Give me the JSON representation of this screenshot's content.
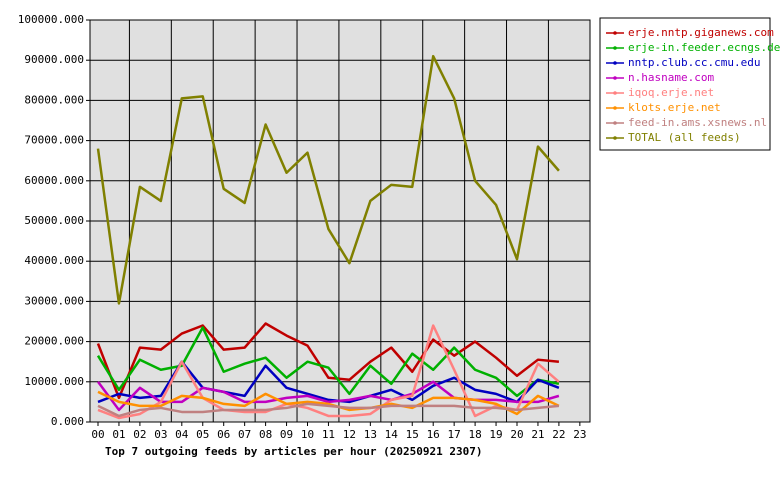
{
  "chart_data": {
    "type": "line",
    "title": "Top 7 outgoing feeds by articles per hour (20250921 2307)",
    "categories": [
      "00",
      "01",
      "02",
      "03",
      "04",
      "05",
      "06",
      "07",
      "08",
      "09",
      "10",
      "11",
      "12",
      "13",
      "14",
      "15",
      "16",
      "17",
      "18",
      "19",
      "20",
      "21",
      "22",
      "23"
    ],
    "ylim": [
      0,
      100000
    ],
    "yticks": [
      {
        "value": 0,
        "label": "0.000"
      },
      {
        "value": 10000,
        "label": "10000.000"
      },
      {
        "value": 20000,
        "label": "20000.000"
      },
      {
        "value": 30000,
        "label": "30000.000"
      },
      {
        "value": 40000,
        "label": "40000.000"
      },
      {
        "value": 50000,
        "label": "50000.000"
      },
      {
        "value": 60000,
        "label": "60000.000"
      },
      {
        "value": 70000,
        "label": "70000.000"
      },
      {
        "value": 80000,
        "label": "80000.000"
      },
      {
        "value": 90000,
        "label": "90000.000"
      },
      {
        "value": 100000,
        "label": "100000.000"
      }
    ],
    "grid": true,
    "series": [
      {
        "name": "erje.nntp.giganews.com",
        "color": "#c00000",
        "values": [
          19500,
          6000,
          18500,
          18000,
          22000,
          24000,
          18000,
          18500,
          24500,
          21500,
          19000,
          11000,
          10500,
          15000,
          18500,
          12500,
          20500,
          16500,
          20000,
          16000,
          11500,
          15500,
          15000,
          null
        ]
      },
      {
        "name": "erje-in.feeder.ecngs.de",
        "color": "#00b000",
        "values": [
          16500,
          8000,
          15500,
          13000,
          14000,
          23500,
          12500,
          14500,
          16000,
          11000,
          15000,
          13500,
          7000,
          14000,
          9500,
          17000,
          13000,
          18500,
          13000,
          11000,
          6500,
          10500,
          9500,
          null
        ]
      },
      {
        "name": "nntp.club.cc.cmu.edu",
        "color": "#0000c0",
        "values": [
          5000,
          7000,
          6000,
          6500,
          15000,
          8500,
          7500,
          6500,
          14000,
          8500,
          7000,
          5500,
          5000,
          6500,
          8000,
          5500,
          9000,
          11000,
          8000,
          7000,
          5000,
          10500,
          8500,
          null
        ]
      },
      {
        "name": "n.hasname.com",
        "color": "#c000c0",
        "values": [
          10000,
          3000,
          8500,
          5000,
          5000,
          8500,
          7500,
          5000,
          5000,
          6000,
          6500,
          5000,
          5500,
          6500,
          5500,
          7000,
          10000,
          6000,
          5500,
          5500,
          5000,
          5000,
          6500,
          null
        ]
      },
      {
        "name": "iqoq.erje.net",
        "color": "#ff8080",
        "values": [
          3000,
          1000,
          2000,
          5000,
          15000,
          6000,
          3000,
          2500,
          2500,
          4500,
          3500,
          1500,
          1500,
          2000,
          5500,
          6500,
          24000,
          13000,
          1500,
          4000,
          3000,
          14500,
          10000,
          null
        ]
      },
      {
        "name": "klots.erje.net",
        "color": "#ff9000",
        "values": [
          7500,
          5000,
          4000,
          4000,
          6500,
          6000,
          4500,
          4000,
          7000,
          4500,
          5000,
          4500,
          3000,
          3500,
          4500,
          3500,
          6000,
          6000,
          5500,
          4500,
          2000,
          6500,
          4000,
          null
        ]
      },
      {
        "name": "feed-in.ams.xsnews.nl",
        "color": "#c08080",
        "values": [
          4000,
          1500,
          3000,
          3500,
          2500,
          2500,
          3000,
          3000,
          3000,
          3500,
          4500,
          4000,
          3500,
          3500,
          4000,
          4000,
          4000,
          4000,
          3500,
          3500,
          3000,
          3500,
          4000,
          null
        ]
      },
      {
        "name": "TOTAL (all feeds)",
        "color": "#808000",
        "values": [
          68000,
          29500,
          58500,
          55000,
          80500,
          81000,
          58000,
          54500,
          74000,
          62000,
          67000,
          48000,
          39500,
          55000,
          59000,
          58500,
          91000,
          80500,
          60000,
          54000,
          40500,
          68500,
          62500,
          null
        ]
      }
    ]
  }
}
